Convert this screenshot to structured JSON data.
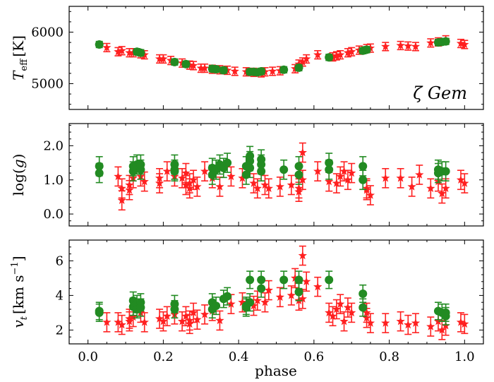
{
  "figure": {
    "xlabel": "phase",
    "xticks": [
      "0.0",
      "0.2",
      "0.4",
      "0.6",
      "0.8",
      "1.0"
    ],
    "star_label": "ζ Gem"
  },
  "colors": {
    "green": "#228B22",
    "red": "#FF2020"
  },
  "chart_data": [
    {
      "type": "scatter",
      "panel": "teff",
      "ylabel": "T_eff [K]",
      "ylabel_main": "T",
      "ylabel_sub": "eff",
      "ylabel_unit": "[K]",
      "xlim": [
        -0.05,
        1.05
      ],
      "ylim": [
        4500,
        6500
      ],
      "yticks": [
        {
          "v": 5000,
          "label": "5000"
        },
        {
          "v": 6000,
          "label": "6000"
        }
      ],
      "series": [
        {
          "name": "green",
          "marker": "circle",
          "err": 60,
          "points": [
            [
              0.03,
              5760
            ],
            [
              0.13,
              5620
            ],
            [
              0.14,
              5600
            ],
            [
              0.23,
              5420
            ],
            [
              0.26,
              5380
            ],
            [
              0.33,
              5290
            ],
            [
              0.34,
              5280
            ],
            [
              0.36,
              5260
            ],
            [
              0.43,
              5230
            ],
            [
              0.44,
              5230
            ],
            [
              0.45,
              5220
            ],
            [
              0.46,
              5240
            ],
            [
              0.52,
              5270
            ],
            [
              0.56,
              5310
            ],
            [
              0.64,
              5510
            ],
            [
              0.73,
              5640
            ],
            [
              0.74,
              5660
            ],
            [
              0.93,
              5800
            ],
            [
              0.94,
              5810
            ],
            [
              0.95,
              5820
            ]
          ]
        },
        {
          "name": "red",
          "marker": "star",
          "err": 80,
          "points": [
            [
              0.05,
              5700
            ],
            [
              0.08,
              5620
            ],
            [
              0.09,
              5640
            ],
            [
              0.11,
              5600
            ],
            [
              0.12,
              5600
            ],
            [
              0.14,
              5580
            ],
            [
              0.15,
              5560
            ],
            [
              0.19,
              5480
            ],
            [
              0.2,
              5480
            ],
            [
              0.22,
              5450
            ],
            [
              0.25,
              5400
            ],
            [
              0.27,
              5360
            ],
            [
              0.28,
              5350
            ],
            [
              0.3,
              5300
            ],
            [
              0.31,
              5300
            ],
            [
              0.33,
              5280
            ],
            [
              0.35,
              5270
            ],
            [
              0.37,
              5260
            ],
            [
              0.39,
              5240
            ],
            [
              0.42,
              5230
            ],
            [
              0.44,
              5220
            ],
            [
              0.46,
              5210
            ],
            [
              0.47,
              5230
            ],
            [
              0.49,
              5240
            ],
            [
              0.51,
              5250
            ],
            [
              0.55,
              5290
            ],
            [
              0.56,
              5380
            ],
            [
              0.57,
              5420
            ],
            [
              0.58,
              5480
            ],
            [
              0.61,
              5560
            ],
            [
              0.65,
              5520
            ],
            [
              0.66,
              5540
            ],
            [
              0.67,
              5560
            ],
            [
              0.69,
              5600
            ],
            [
              0.7,
              5620
            ],
            [
              0.72,
              5650
            ],
            [
              0.74,
              5680
            ],
            [
              0.75,
              5690
            ],
            [
              0.79,
              5720
            ],
            [
              0.83,
              5740
            ],
            [
              0.85,
              5730
            ],
            [
              0.87,
              5720
            ],
            [
              0.91,
              5790
            ],
            [
              0.93,
              5810
            ],
            [
              0.95,
              5850
            ],
            [
              0.99,
              5780
            ],
            [
              1.0,
              5760
            ]
          ]
        }
      ]
    },
    {
      "type": "scatter",
      "panel": "logg",
      "ylabel": "log(g)",
      "ylabel_pre": "log(",
      "ylabel_it": "g",
      "ylabel_post": ")",
      "xlim": [
        -0.05,
        1.05
      ],
      "ylim": [
        -0.35,
        2.65
      ],
      "yticks": [
        {
          "v": 0.0,
          "label": "0.0"
        },
        {
          "v": 1.0,
          "label": "1.0"
        },
        {
          "v": 2.0,
          "label": "2.0"
        }
      ],
      "series": [
        {
          "name": "green",
          "marker": "circle",
          "err": 0.28,
          "points": [
            [
              0.03,
              1.4
            ],
            [
              0.03,
              1.2
            ],
            [
              0.12,
              1.25
            ],
            [
              0.12,
              1.4
            ],
            [
              0.13,
              1.45
            ],
            [
              0.14,
              1.3
            ],
            [
              0.14,
              1.45
            ],
            [
              0.23,
              1.3
            ],
            [
              0.23,
              1.45
            ],
            [
              0.23,
              1.25
            ],
            [
              0.33,
              1.35
            ],
            [
              0.33,
              1.15
            ],
            [
              0.34,
              1.3
            ],
            [
              0.35,
              1.45
            ],
            [
              0.36,
              1.35
            ],
            [
              0.37,
              1.5
            ],
            [
              0.42,
              1.4
            ],
            [
              0.42,
              1.15
            ],
            [
              0.43,
              1.7
            ],
            [
              0.43,
              1.55
            ],
            [
              0.43,
              1.35
            ],
            [
              0.46,
              1.6
            ],
            [
              0.46,
              1.45
            ],
            [
              0.46,
              1.25
            ],
            [
              0.52,
              1.3
            ],
            [
              0.56,
              1.4
            ],
            [
              0.56,
              1.15
            ],
            [
              0.64,
              1.5
            ],
            [
              0.64,
              1.3
            ],
            [
              0.73,
              1.4
            ],
            [
              0.73,
              1.0
            ],
            [
              0.93,
              1.3
            ],
            [
              0.93,
              1.2
            ],
            [
              0.94,
              1.25
            ],
            [
              0.95,
              1.25
            ]
          ]
        },
        {
          "name": "red",
          "marker": "star",
          "err": 0.28,
          "points": [
            [
              0.08,
              1.1
            ],
            [
              0.09,
              0.75
            ],
            [
              0.09,
              0.4
            ],
            [
              0.11,
              0.7
            ],
            [
              0.11,
              0.85
            ],
            [
              0.12,
              1.05
            ],
            [
              0.14,
              1.1
            ],
            [
              0.15,
              0.95
            ],
            [
              0.19,
              1.05
            ],
            [
              0.19,
              0.9
            ],
            [
              0.21,
              1.25
            ],
            [
              0.23,
              1.1
            ],
            [
              0.25,
              1.05
            ],
            [
              0.26,
              0.85
            ],
            [
              0.26,
              1.2
            ],
            [
              0.27,
              0.75
            ],
            [
              0.27,
              0.9
            ],
            [
              0.28,
              1.0
            ],
            [
              0.29,
              0.8
            ],
            [
              0.31,
              1.25
            ],
            [
              0.33,
              1.05
            ],
            [
              0.35,
              0.8
            ],
            [
              0.38,
              1.1
            ],
            [
              0.41,
              1.05
            ],
            [
              0.44,
              0.9
            ],
            [
              0.45,
              0.75
            ],
            [
              0.47,
              0.85
            ],
            [
              0.48,
              0.75
            ],
            [
              0.51,
              0.8
            ],
            [
              0.54,
              0.85
            ],
            [
              0.56,
              0.75
            ],
            [
              0.56,
              0.65
            ],
            [
              0.57,
              1.8
            ],
            [
              0.57,
              1.0
            ],
            [
              0.61,
              1.25
            ],
            [
              0.64,
              0.95
            ],
            [
              0.66,
              0.9
            ],
            [
              0.67,
              1.1
            ],
            [
              0.68,
              1.25
            ],
            [
              0.69,
              1.0
            ],
            [
              0.7,
              1.2
            ],
            [
              0.74,
              0.7
            ],
            [
              0.74,
              0.75
            ],
            [
              0.75,
              0.55
            ],
            [
              0.79,
              1.05
            ],
            [
              0.83,
              1.05
            ],
            [
              0.86,
              0.8
            ],
            [
              0.88,
              1.15
            ],
            [
              0.91,
              0.75
            ],
            [
              0.93,
              0.95
            ],
            [
              0.94,
              0.6
            ],
            [
              0.95,
              0.75
            ],
            [
              0.99,
              1.0
            ],
            [
              1.0,
              0.9
            ]
          ]
        }
      ]
    },
    {
      "type": "scatter",
      "panel": "vt",
      "ylabel": "v_t [km s^-1]",
      "ylabel_main": "v",
      "ylabel_sub": "t",
      "ylabel_unit": "[km s",
      "ylabel_sup": "−1",
      "ylabel_close": "]",
      "xlim": [
        -0.05,
        1.05
      ],
      "ylim": [
        1.2,
        7.2
      ],
      "yticks": [
        {
          "v": 2,
          "label": "2"
        },
        {
          "v": 4,
          "label": "4"
        },
        {
          "v": 6,
          "label": "6"
        }
      ],
      "series": [
        {
          "name": "green",
          "marker": "circle",
          "err": 0.5,
          "points": [
            [
              0.03,
              3.1
            ],
            [
              0.03,
              3.0
            ],
            [
              0.12,
              3.7
            ],
            [
              0.12,
              3.35
            ],
            [
              0.13,
              3.5
            ],
            [
              0.13,
              3.2
            ],
            [
              0.14,
              3.6
            ],
            [
              0.14,
              3.3
            ],
            [
              0.23,
              3.5
            ],
            [
              0.23,
              3.2
            ],
            [
              0.33,
              3.6
            ],
            [
              0.33,
              3.2
            ],
            [
              0.34,
              3.4
            ],
            [
              0.36,
              3.8
            ],
            [
              0.37,
              3.95
            ],
            [
              0.42,
              3.4
            ],
            [
              0.42,
              3.3
            ],
            [
              0.43,
              4.9
            ],
            [
              0.43,
              3.6
            ],
            [
              0.46,
              4.9
            ],
            [
              0.46,
              4.4
            ],
            [
              0.52,
              4.9
            ],
            [
              0.56,
              4.9
            ],
            [
              0.56,
              4.2
            ],
            [
              0.64,
              4.9
            ],
            [
              0.73,
              4.1
            ],
            [
              0.73,
              3.3
            ],
            [
              0.93,
              3.1
            ],
            [
              0.94,
              3.0
            ],
            [
              0.95,
              2.8
            ],
            [
              0.95,
              3.0
            ]
          ]
        },
        {
          "name": "red",
          "marker": "star",
          "err": 0.55,
          "points": [
            [
              0.05,
              2.45
            ],
            [
              0.08,
              2.45
            ],
            [
              0.09,
              2.3
            ],
            [
              0.11,
              2.5
            ],
            [
              0.11,
              2.65
            ],
            [
              0.12,
              2.75
            ],
            [
              0.14,
              3.0
            ],
            [
              0.15,
              2.45
            ],
            [
              0.19,
              2.65
            ],
            [
              0.2,
              2.5
            ],
            [
              0.21,
              2.8
            ],
            [
              0.23,
              2.9
            ],
            [
              0.25,
              2.5
            ],
            [
              0.26,
              2.8
            ],
            [
              0.27,
              2.35
            ],
            [
              0.27,
              2.55
            ],
            [
              0.28,
              3.0
            ],
            [
              0.29,
              2.6
            ],
            [
              0.31,
              2.9
            ],
            [
              0.33,
              3.1
            ],
            [
              0.35,
              2.55
            ],
            [
              0.38,
              3.5
            ],
            [
              0.41,
              3.6
            ],
            [
              0.44,
              3.4
            ],
            [
              0.45,
              3.7
            ],
            [
              0.47,
              3.6
            ],
            [
              0.48,
              4.3
            ],
            [
              0.51,
              3.9
            ],
            [
              0.54,
              4.0
            ],
            [
              0.55,
              5.0
            ],
            [
              0.56,
              3.7
            ],
            [
              0.57,
              6.3
            ],
            [
              0.57,
              3.8
            ],
            [
              0.58,
              4.8
            ],
            [
              0.61,
              4.5
            ],
            [
              0.64,
              3.0
            ],
            [
              0.65,
              2.8
            ],
            [
              0.66,
              3.2
            ],
            [
              0.67,
              3.5
            ],
            [
              0.68,
              2.5
            ],
            [
              0.69,
              3.3
            ],
            [
              0.7,
              3.0
            ],
            [
              0.74,
              2.7
            ],
            [
              0.74,
              3.0
            ],
            [
              0.75,
              2.4
            ],
            [
              0.79,
              2.4
            ],
            [
              0.83,
              2.5
            ],
            [
              0.85,
              2.3
            ],
            [
              0.87,
              2.4
            ],
            [
              0.91,
              2.2
            ],
            [
              0.93,
              2.5
            ],
            [
              0.94,
              2.0
            ],
            [
              0.95,
              2.25
            ],
            [
              0.99,
              2.45
            ],
            [
              1.0,
              2.35
            ]
          ]
        }
      ]
    }
  ]
}
